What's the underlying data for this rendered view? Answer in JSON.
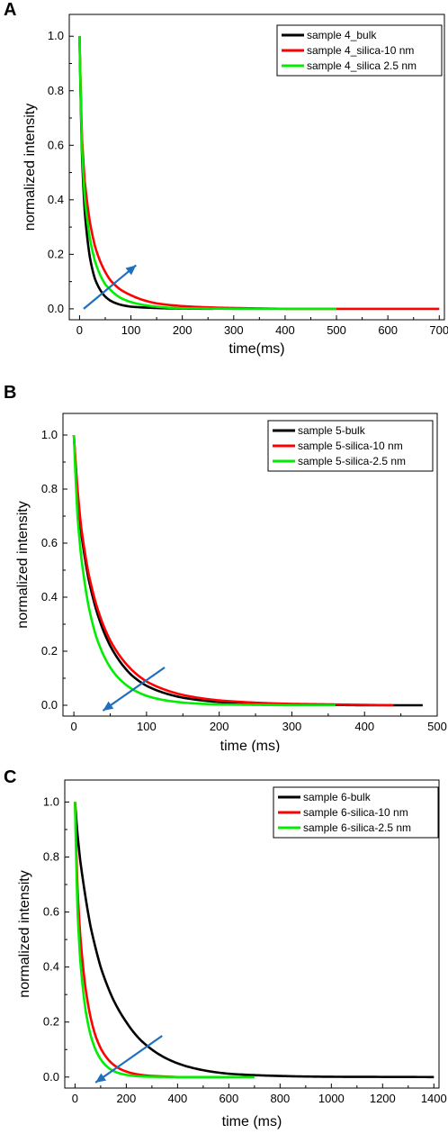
{
  "panels": [
    {
      "letter": "A"
    },
    {
      "letter": "B"
    },
    {
      "letter": "C"
    }
  ],
  "chart_data": [
    {
      "type": "line",
      "panel": "A",
      "xlabel": "time(ms)",
      "ylabel": "normalized intensity",
      "xlim": [
        -20,
        710
      ],
      "ylim": [
        -0.04,
        1.08
      ],
      "xticks": [
        0,
        100,
        200,
        300,
        400,
        500,
        600,
        700
      ],
      "yticks": [
        0.0,
        0.2,
        0.4,
        0.6,
        0.8,
        1.0
      ],
      "ytick_labels": [
        "0.0",
        "0.2",
        "0.4",
        "0.6",
        "0.8",
        "1.0"
      ],
      "legend_position": "top-right",
      "grid": false,
      "arrow": {
        "from": [
          8,
          0.0
        ],
        "to": [
          110,
          0.16
        ],
        "direction": "up-right"
      },
      "series": [
        {
          "name": "sample 4_bulk",
          "color": "#000000",
          "x_end": 260,
          "values_x": [
            0,
            5,
            10,
            20,
            30,
            40,
            50,
            60,
            80,
            100,
            150,
            200,
            260
          ],
          "values_y": [
            1.0,
            0.55,
            0.36,
            0.19,
            0.11,
            0.07,
            0.045,
            0.03,
            0.015,
            0.008,
            0.003,
            0.001,
            0.0
          ]
        },
        {
          "name": "sample 4_silica-10 nm",
          "color": "#ff0000",
          "x_end": 700,
          "values_x": [
            0,
            5,
            10,
            20,
            30,
            40,
            50,
            60,
            80,
            100,
            150,
            200,
            300,
            400,
            500,
            700
          ],
          "values_y": [
            1.0,
            0.62,
            0.47,
            0.32,
            0.23,
            0.175,
            0.135,
            0.105,
            0.07,
            0.05,
            0.02,
            0.01,
            0.003,
            0.0,
            0.0,
            0.0
          ]
        },
        {
          "name": "sample 4_silica 2.5 nm",
          "color": "#00ee00",
          "x_end": 500,
          "values_x": [
            0,
            5,
            10,
            20,
            30,
            40,
            50,
            60,
            80,
            100,
            150,
            200,
            300,
            500
          ],
          "values_y": [
            1.0,
            0.58,
            0.41,
            0.26,
            0.175,
            0.125,
            0.09,
            0.07,
            0.04,
            0.025,
            0.008,
            0.002,
            0.0,
            0.0
          ]
        }
      ]
    },
    {
      "type": "line",
      "panel": "B",
      "xlabel": "time (ms)",
      "ylabel": "normalized intensity",
      "xlim": [
        -15,
        500
      ],
      "ylim": [
        -0.04,
        1.08
      ],
      "xticks": [
        0,
        100,
        200,
        300,
        400,
        500
      ],
      "yticks": [
        0.0,
        0.2,
        0.4,
        0.6,
        0.8,
        1.0
      ],
      "ytick_labels": [
        "0.0",
        "0.2",
        "0.4",
        "0.6",
        "0.8",
        "1.0"
      ],
      "legend_position": "top-right",
      "grid": false,
      "arrow": {
        "from": [
          125,
          0.14
        ],
        "to": [
          40,
          -0.02
        ],
        "direction": "down-left"
      },
      "series": [
        {
          "name": "sample 5-bulk",
          "color": "#000000",
          "x_end": 480,
          "values_x": [
            0,
            5,
            10,
            20,
            30,
            40,
            50,
            60,
            80,
            100,
            150,
            200,
            300,
            400,
            480
          ],
          "values_y": [
            1.0,
            0.78,
            0.64,
            0.47,
            0.36,
            0.28,
            0.22,
            0.175,
            0.11,
            0.072,
            0.028,
            0.012,
            0.003,
            0.0,
            0.0
          ]
        },
        {
          "name": "sample 5-silica-10 nm",
          "color": "#ff0000",
          "x_end": 440,
          "values_x": [
            0,
            5,
            10,
            20,
            30,
            40,
            50,
            60,
            80,
            100,
            150,
            200,
            300,
            440
          ],
          "values_y": [
            1.0,
            0.8,
            0.66,
            0.49,
            0.38,
            0.3,
            0.24,
            0.195,
            0.13,
            0.088,
            0.038,
            0.018,
            0.005,
            0.0
          ]
        },
        {
          "name": "sample 5-silica-2.5 nm",
          "color": "#00ee00",
          "x_end": 360,
          "values_x": [
            0,
            5,
            10,
            20,
            30,
            40,
            50,
            60,
            80,
            100,
            150,
            200,
            300,
            360
          ],
          "values_y": [
            1.0,
            0.7,
            0.55,
            0.37,
            0.26,
            0.19,
            0.14,
            0.105,
            0.06,
            0.035,
            0.01,
            0.003,
            0.0,
            0.0
          ]
        }
      ]
    },
    {
      "type": "line",
      "panel": "C",
      "xlabel": "time (ms)",
      "ylabel": "normalized intensity",
      "xlim": [
        -40,
        1420
      ],
      "ylim": [
        -0.04,
        1.08
      ],
      "xticks": [
        0,
        200,
        400,
        600,
        800,
        1000,
        1200,
        1400
      ],
      "yticks": [
        0.0,
        0.2,
        0.4,
        0.6,
        0.8,
        1.0
      ],
      "ytick_labels": [
        "0.0",
        "0.2",
        "0.4",
        "0.6",
        "0.8",
        "1.0"
      ],
      "legend_position": "top-right",
      "grid": false,
      "arrow": {
        "from": [
          340,
          0.15
        ],
        "to": [
          80,
          -0.02
        ],
        "direction": "down-left"
      },
      "series": [
        {
          "name": "sample 6-bulk",
          "color": "#000000",
          "x_end": 1400,
          "values_x": [
            0,
            10,
            20,
            40,
            60,
            80,
            100,
            150,
            200,
            250,
            300,
            400,
            500,
            600,
            800,
            1000,
            1400
          ],
          "values_y": [
            1.0,
            0.88,
            0.79,
            0.66,
            0.55,
            0.47,
            0.4,
            0.28,
            0.2,
            0.14,
            0.1,
            0.05,
            0.025,
            0.012,
            0.004,
            0.001,
            0.0
          ]
        },
        {
          "name": "sample 6-silica-10 nm",
          "color": "#ff0000",
          "x_end": 600,
          "values_x": [
            0,
            10,
            20,
            40,
            60,
            80,
            100,
            150,
            200,
            300,
            400,
            600
          ],
          "values_y": [
            1.0,
            0.68,
            0.52,
            0.33,
            0.22,
            0.15,
            0.105,
            0.045,
            0.02,
            0.004,
            0.0,
            0.0
          ]
        },
        {
          "name": "sample 6-silica-2.5 nm",
          "color": "#00ee00",
          "x_end": 700,
          "values_x": [
            0,
            10,
            20,
            40,
            60,
            80,
            100,
            150,
            200,
            300,
            400,
            700
          ],
          "values_y": [
            1.0,
            0.6,
            0.43,
            0.25,
            0.155,
            0.1,
            0.065,
            0.022,
            0.008,
            0.001,
            0.0,
            0.0
          ]
        }
      ]
    }
  ]
}
